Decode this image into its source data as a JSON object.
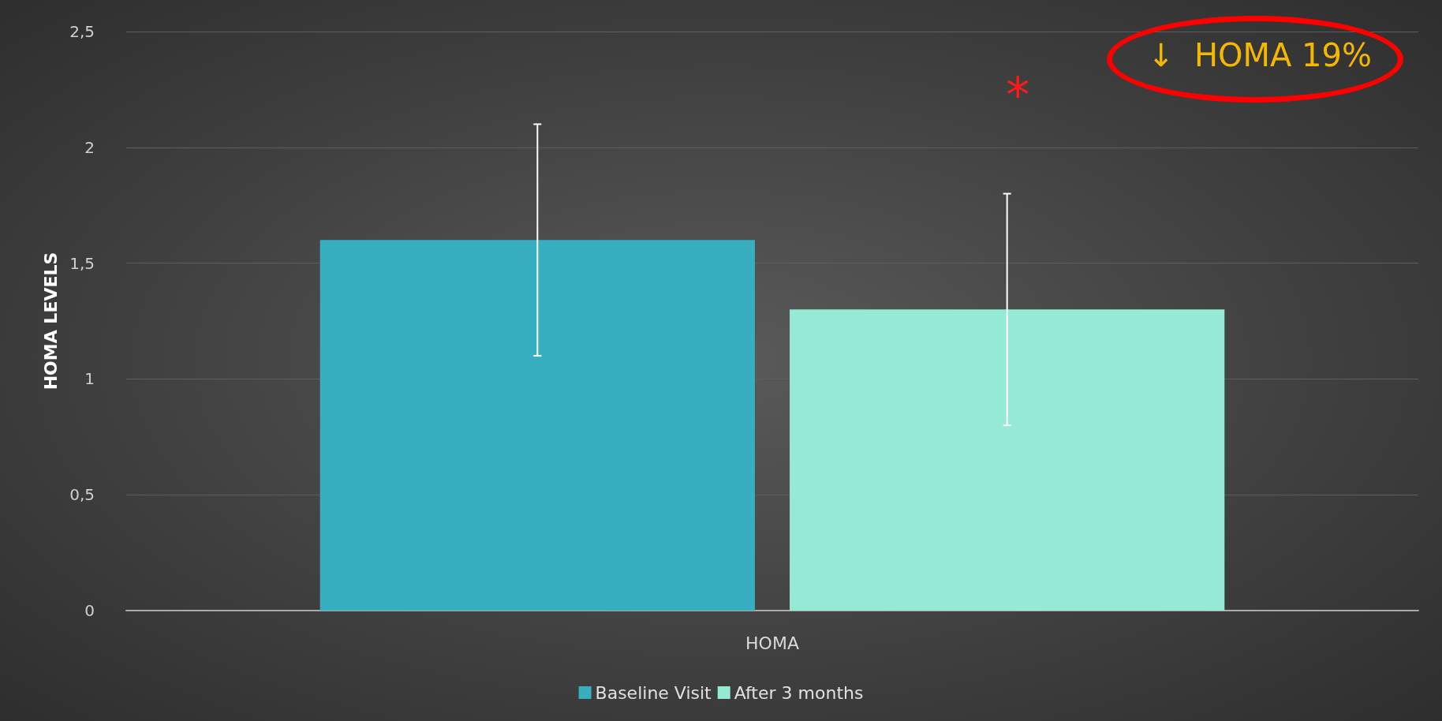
{
  "chart_data": {
    "type": "bar",
    "ylabel": "HOMA LEVELS",
    "categories": [
      "HOMA"
    ],
    "series": [
      {
        "name": "Baseline Visit",
        "color": "#38afc0",
        "values": [
          1.6
        ],
        "errors": [
          0.5
        ]
      },
      {
        "name": "After 3 months",
        "color": "#95ead6",
        "values": [
          1.3
        ],
        "errors": [
          0.5
        ]
      }
    ],
    "ylim": [
      0,
      2.5
    ],
    "yticks": [
      0,
      {
        "value": 0.5,
        "label": "0,5"
      },
      1,
      {
        "value": 1.5,
        "label": "1,5"
      },
      2,
      {
        "value": 2.5,
        "label": "2,5"
      }
    ],
    "grid": "y",
    "legend": "bottom",
    "annotations": [
      "↓  HOMA 19%",
      "*"
    ]
  }
}
